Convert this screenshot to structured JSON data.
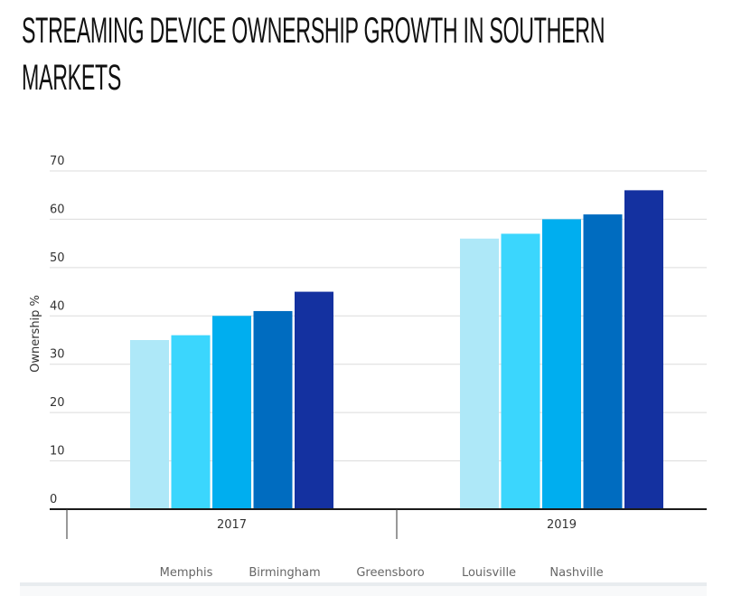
{
  "title_lines": [
    "STREAMING DEVICE OWNERSHIP GROWTH IN SOUTHERN",
    "MARKETS"
  ],
  "chart_data": {
    "type": "bar",
    "title": "STREAMING DEVICE OWNERSHIP GROWTH IN SOUTHERN MARKETS",
    "xlabel": "",
    "ylabel": "Ownership %",
    "categories": [
      "2017",
      "2019"
    ],
    "ylim": [
      0,
      70
    ],
    "yticks": [
      0,
      10,
      20,
      30,
      40,
      50,
      60,
      70
    ],
    "grid": true,
    "legend_position": "bottom",
    "series": [
      {
        "name": "Memphis",
        "color": "#AEE8F8",
        "values": [
          35,
          56
        ]
      },
      {
        "name": "Birmingham",
        "color": "#3BD6FD",
        "values": [
          36,
          57
        ]
      },
      {
        "name": "Greensboro",
        "color": "#00AEEF",
        "values": [
          40,
          60
        ]
      },
      {
        "name": "Louisville",
        "color": "#006CC0",
        "values": [
          41,
          61
        ]
      },
      {
        "name": "Nashville",
        "color": "#1431A0",
        "values": [
          45,
          66
        ]
      }
    ]
  }
}
